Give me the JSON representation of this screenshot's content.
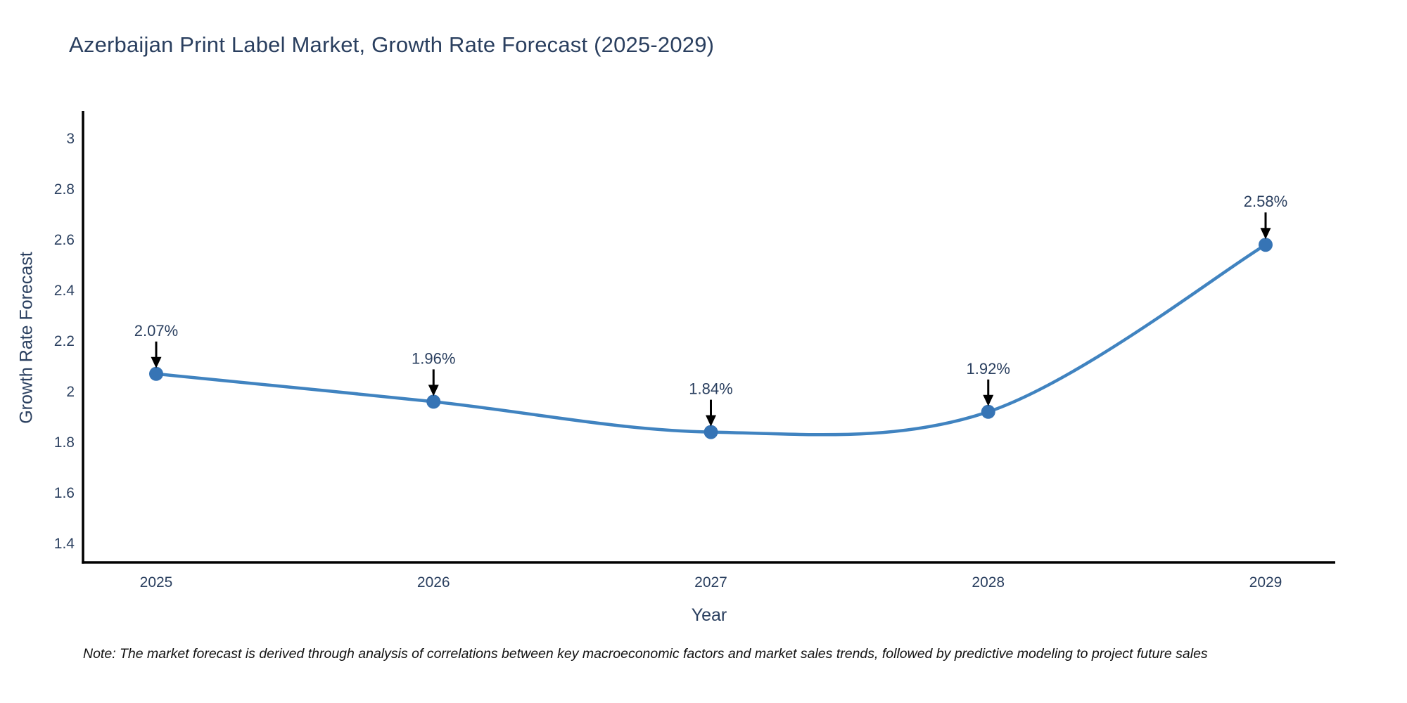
{
  "chart_data": {
    "type": "line",
    "title": "Azerbaijan Print Label Market, Growth Rate Forecast (2025-2029)",
    "xlabel": "Year",
    "ylabel": "Growth Rate Forecast",
    "x": [
      2025,
      2026,
      2027,
      2028,
      2029
    ],
    "series": [
      {
        "name": "Growth Rate Forecast",
        "values": [
          2.07,
          1.96,
          1.84,
          1.92,
          2.58
        ],
        "point_labels": [
          "2.07%",
          "1.96%",
          "1.84%",
          "1.92%",
          "2.58%"
        ]
      }
    ],
    "line_shape": "spline",
    "grid": false,
    "legend": "none",
    "ylim": [
      1.33,
      3.11
    ],
    "yticks": [
      {
        "v": 3,
        "label": "3"
      },
      {
        "v": 2.8,
        "label": "2.8"
      },
      {
        "v": 2.6,
        "label": "2.6"
      },
      {
        "v": 2.4,
        "label": "2.4"
      },
      {
        "v": 2.2,
        "label": "2.2"
      },
      {
        "v": 2,
        "label": "2"
      },
      {
        "v": 1.8,
        "label": "1.8"
      },
      {
        "v": 1.6,
        "label": "1.6"
      },
      {
        "v": 1.4,
        "label": "1.4"
      }
    ],
    "colors": {
      "line": "#4083c0",
      "marker": "#3674b5",
      "axis": "#000000",
      "text": "#2a3f5f",
      "annotation_arrow": "#000000"
    },
    "note": "Note: The market forecast is derived through analysis of correlations between key macroeconomic factors and market sales trends, followed by predictive modeling to project future sales"
  }
}
